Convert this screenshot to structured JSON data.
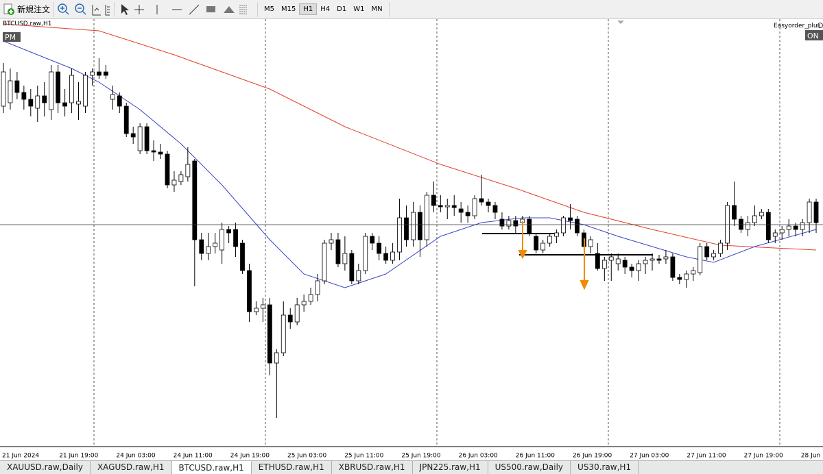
{
  "toolbar": {
    "new_order": "新規注文",
    "timeframes": [
      "M5",
      "M15",
      "H1",
      "H4",
      "D1",
      "W1",
      "MN"
    ]
  },
  "chart_data": {
    "type": "candlestick",
    "symbol": "BTCUSD.raw,H1",
    "session": "PM",
    "ea_name": "Easyorder_plus",
    "ea_status": "ON",
    "time_labels": [
      "21 Jun 2024",
      "21 Jun 19:00",
      "24 Jun 03:00",
      "24 Jun 11:00",
      "24 Jun 19:00",
      "25 Jun 03:00",
      "25 Jun 11:00",
      "25 Jun 19:00",
      "26 Jun 03:00",
      "26 Jun 11:00",
      "26 Jun 19:00",
      "27 Jun 03:00",
      "27 Jun 11:00",
      "27 Jun 19:00",
      "28 Jun"
    ],
    "ylim": [
      59480,
      65680
    ],
    "open": [
      64450,
      64500,
      64820,
      64650,
      64550,
      64420,
      64600,
      64400,
      64950,
      64500,
      64500,
      64480,
      64450,
      64900,
      64950,
      64950,
      64550,
      64600,
      64450,
      64050,
      63800,
      64150,
      63800,
      63780,
      63750,
      63300,
      63350,
      63420,
      63650,
      62500,
      62300,
      62400,
      62350,
      62650,
      62650,
      62450,
      62050,
      61450,
      61500,
      61550,
      60700,
      60850,
      61400,
      61300,
      61550,
      61600,
      61700,
      61900,
      62450,
      62500,
      62150,
      62300,
      61900,
      62050,
      62550,
      62450,
      62300,
      62200,
      62320,
      62820,
      62500,
      62900,
      62500,
      63150,
      63000,
      62980,
      63000,
      62950,
      62900,
      62850,
      63100,
      63050,
      63000,
      62800,
      62700,
      62780,
      62750,
      62800,
      62550,
      62350,
      62450,
      62550,
      62600,
      62820,
      62800,
      62600,
      62400,
      62300,
      62080,
      62200,
      62150,
      62200,
      62100,
      62050,
      62150,
      62200,
      62220,
      62220,
      62250,
      61950,
      61920,
      62000,
      62020,
      62400,
      62250,
      62300,
      62450,
      63000,
      62800,
      62650,
      62750,
      62850,
      62900,
      62550,
      62600,
      62650,
      62700,
      62650,
      62750,
      63050
    ],
    "high": [
      65080,
      65000,
      64950,
      64750,
      64700,
      64750,
      64800,
      65050,
      65050,
      64700,
      65000,
      64800,
      64950,
      65000,
      65150,
      65050,
      64750,
      64650,
      64500,
      64150,
      64200,
      64200,
      63950,
      63900,
      63800,
      63500,
      63500,
      63850,
      63680,
      62600,
      62600,
      62600,
      62750,
      62700,
      62750,
      62500,
      62150,
      61600,
      61650,
      61650,
      60900,
      61600,
      61500,
      61650,
      61700,
      61800,
      62000,
      62500,
      62600,
      62600,
      62550,
      62350,
      62150,
      62600,
      62600,
      62550,
      62400,
      62450,
      63100,
      63000,
      63050,
      63000,
      63200,
      63350,
      63150,
      63100,
      63150,
      63050,
      63000,
      63150,
      63450,
      63100,
      63050,
      62900,
      62850,
      62850,
      62850,
      62850,
      62600,
      62500,
      62600,
      62650,
      62850,
      63020,
      62850,
      62650,
      62550,
      62450,
      62250,
      62300,
      62300,
      62250,
      62150,
      62200,
      62250,
      62300,
      62280,
      62350,
      62300,
      62000,
      62050,
      62100,
      62450,
      62450,
      62350,
      62500,
      63050,
      63350,
      62850,
      62850,
      63000,
      62950,
      62950,
      62650,
      62700,
      62800,
      62750,
      62800,
      63100,
      63100
    ],
    "low": [
      64350,
      64400,
      64550,
      64400,
      64300,
      64220,
      64300,
      64250,
      64350,
      64300,
      64350,
      64250,
      64350,
      64750,
      64850,
      64850,
      64400,
      64350,
      64000,
      63900,
      63750,
      63750,
      63650,
      63680,
      63250,
      63200,
      63300,
      63350,
      61820,
      62200,
      62200,
      62300,
      62150,
      62450,
      62250,
      62000,
      61300,
      61400,
      61300,
      60520,
      59900,
      60800,
      61200,
      61250,
      61450,
      61550,
      61600,
      61850,
      62350,
      62100,
      62050,
      61850,
      61850,
      62000,
      62350,
      62200,
      62150,
      62150,
      62200,
      62400,
      62400,
      62250,
      62400,
      62900,
      62900,
      62800,
      62850,
      62750,
      62750,
      62800,
      63000,
      62900,
      62800,
      62650,
      62650,
      62600,
      62600,
      62550,
      62300,
      62300,
      62400,
      62450,
      62550,
      62650,
      62550,
      62350,
      62300,
      62050,
      61900,
      61900,
      62050,
      62000,
      61950,
      61900,
      62000,
      62050,
      62150,
      62150,
      61900,
      61850,
      61800,
      61900,
      61980,
      62200,
      62200,
      62250,
      62350,
      62700,
      62600,
      62550,
      62700,
      62800,
      62450,
      62450,
      62500,
      62550,
      62550,
      62550,
      62600,
      62600
    ],
    "close": [
      64950,
      64820,
      64650,
      64550,
      64450,
      64600,
      64500,
      64950,
      64500,
      64450,
      64900,
      64520,
      64900,
      64950,
      64900,
      64900,
      64620,
      64450,
      64050,
      64000,
      64150,
      63800,
      63780,
      63750,
      63300,
      63370,
      63450,
      63600,
      62500,
      62300,
      62400,
      62450,
      62650,
      62600,
      62400,
      62050,
      61450,
      61500,
      61550,
      60700,
      60850,
      61400,
      61300,
      61550,
      61600,
      61700,
      61900,
      62450,
      62500,
      62150,
      62300,
      61900,
      62050,
      62550,
      62450,
      62300,
      62200,
      62320,
      62820,
      62500,
      62900,
      62500,
      63150,
      63000,
      62980,
      63000,
      62970,
      62900,
      62850,
      63100,
      63050,
      63000,
      62900,
      62700,
      62780,
      62700,
      62800,
      62600,
      62350,
      62450,
      62550,
      62600,
      62820,
      62780,
      62600,
      62400,
      62500,
      62080,
      62200,
      62250,
      62220,
      62100,
      62050,
      62150,
      62200,
      62220,
      62200,
      62250,
      61950,
      61920,
      62000,
      62050,
      62400,
      62250,
      62300,
      62450,
      63000,
      62800,
      62650,
      62750,
      62850,
      62900,
      62500,
      62600,
      62650,
      62700,
      62650,
      62750,
      63050,
      62750
    ],
    "lines": [
      {
        "color": "#e0402a",
        "x": [
          0,
          14,
          25,
          39,
          50,
          64,
          75,
          85,
          95,
          105,
          119
        ],
        "values": [
          65650,
          65550,
          65200,
          64700,
          64150,
          63600,
          63250,
          62900,
          62650,
          62420,
          62350
        ]
      },
      {
        "color": "#3a45c8",
        "x": [
          0,
          10,
          14,
          20,
          26,
          32,
          39,
          44,
          50,
          56,
          64,
          70,
          76,
          80,
          85,
          90,
          95,
          100,
          104,
          110,
          119
        ],
        "values": [
          65400,
          65000,
          64800,
          64400,
          63900,
          63300,
          62500,
          62000,
          61800,
          62000,
          62550,
          62750,
          62820,
          62820,
          62720,
          62550,
          62400,
          62250,
          62170,
          62400,
          62650
        ]
      }
    ]
  },
  "tabs": [
    "XAUUSD.raw,Daily",
    "XAGUSD.raw,H1",
    "BTCUSD.raw,H1",
    "ETHUSD.raw,H1",
    "XBRUSD.raw,H1",
    "JPN225.raw,H1",
    "US500.raw,Daily",
    "US30.raw,H1"
  ],
  "active_tab": 2
}
